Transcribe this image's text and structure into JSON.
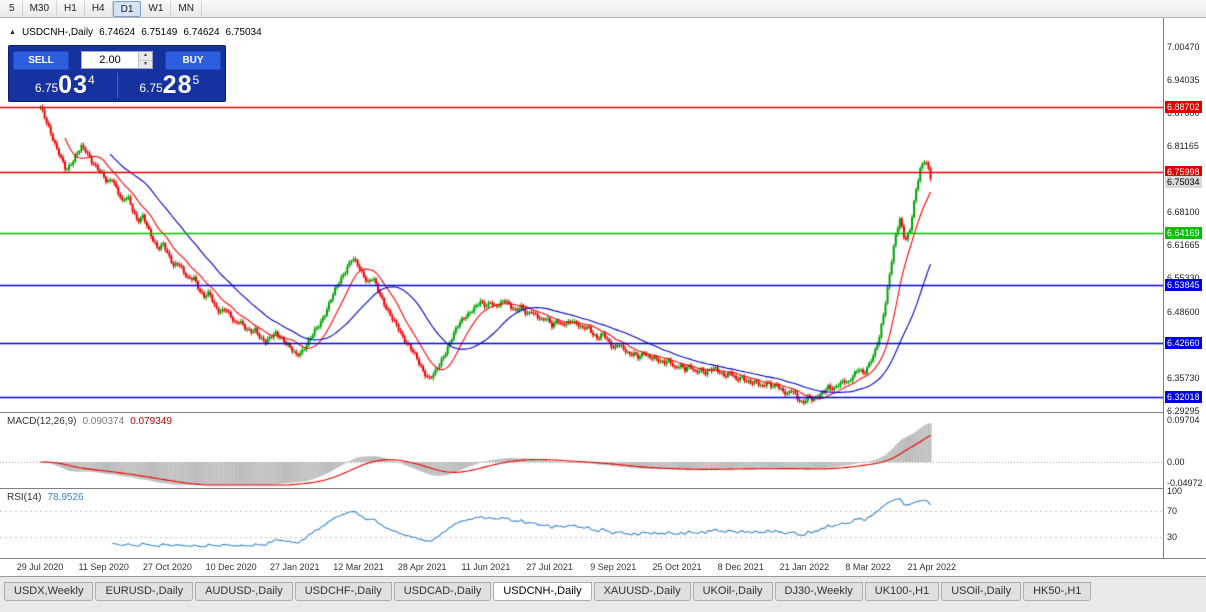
{
  "toolbar": {
    "timeframes": [
      {
        "label": "5",
        "active": false
      },
      {
        "label": "M30",
        "active": false
      },
      {
        "label": "H1",
        "active": false
      },
      {
        "label": "H4",
        "active": false
      },
      {
        "label": "D1",
        "active": true
      },
      {
        "label": "W1",
        "active": false
      },
      {
        "label": "MN",
        "active": false
      }
    ]
  },
  "quote_header": {
    "arrow": "▲",
    "symbol": "USDCNH-,Daily",
    "open": "6.74624",
    "high": "6.75149",
    "low": "6.74624",
    "close": "6.75034"
  },
  "trade_panel": {
    "sell_label": "SELL",
    "buy_label": "BUY",
    "volume": "2.00",
    "sell_price": {
      "prefix": "6.75",
      "main": "03",
      "pip": "4"
    },
    "buy_price": {
      "prefix": "6.75",
      "main": "28",
      "pip": "5"
    }
  },
  "icons": {
    "spinner_up": "▲",
    "spinner_down": "▼"
  },
  "price_axis": {
    "labels": [
      "7.00470",
      "6.94035",
      "6.87600",
      "6.81165",
      "6.68100",
      "6.61665",
      "6.55330",
      "6.48600",
      "6.35730",
      "6.29295"
    ]
  },
  "levels": [
    {
      "label": "6.88702",
      "color": "#e00000",
      "text_color": "#ffffff",
      "draw_line": true,
      "width": 1.6,
      "type": "resistance"
    },
    {
      "label": "6.75998",
      "color": "#e00000",
      "text_color": "#ffffff",
      "draw_line": true,
      "width": 1.6,
      "type": "resistance"
    },
    {
      "label": "6.75034",
      "color": "#d8d8d8",
      "text_color": "#000000",
      "draw_line": false,
      "width": 1,
      "type": "current"
    },
    {
      "label": "6.64169",
      "color": "#00c000",
      "text_color": "#ffffff",
      "draw_line": true,
      "width": 1.6,
      "type": "support"
    },
    {
      "label": "6.53845",
      "color": "#0000e0",
      "text_color": "#ffffff",
      "draw_line": true,
      "width": 1.6,
      "type": "support"
    },
    {
      "label": "6.42660",
      "color": "#0000e0",
      "text_color": "#ffffff",
      "draw_line": true,
      "width": 1.6,
      "type": "support"
    },
    {
      "label": "6.32018",
      "color": "#0000e0",
      "text_color": "#ffffff",
      "draw_line": true,
      "width": 1.6,
      "type": "support"
    }
  ],
  "indicators": {
    "macd": {
      "name": "MACD(12,26,9)",
      "value": "0.090374",
      "signal_value": "0.079349",
      "axis_labels": [
        "0.09704",
        "0.00",
        "-0.04972"
      ]
    },
    "rsi": {
      "name": "RSI(14)",
      "value": "78.9526",
      "axis_labels": [
        "100",
        "70",
        "30"
      ],
      "levels": [
        70,
        30
      ]
    }
  },
  "x_axis": {
    "dates": [
      "29 Jul 2020",
      "11 Sep 2020",
      "27 Oct 2020",
      "10 Dec 2020",
      "27 Jan 2021",
      "12 Mar 2021",
      "28 Apr 2021",
      "11 Jun 2021",
      "27 Jul 2021",
      "9 Sep 2021",
      "25 Oct 2021",
      "8 Dec 2021",
      "21 Jan 2022",
      "8 Mar 2022",
      "21 Apr 2022"
    ]
  },
  "tabs": [
    {
      "label": "USDX,Weekly",
      "active": false
    },
    {
      "label": "EURUSD-,Daily",
      "active": false
    },
    {
      "label": "AUDUSD-,Daily",
      "active": false
    },
    {
      "label": "USDCHF-,Daily",
      "active": false
    },
    {
      "label": "USDCAD-,Daily",
      "active": false
    },
    {
      "label": "USDCNH-,Daily",
      "active": true
    },
    {
      "label": "XAUUSD-,Daily",
      "active": false
    },
    {
      "label": "UKOil-,Daily",
      "active": false
    },
    {
      "label": "DJ30-,Weekly",
      "active": false
    },
    {
      "label": "UK100-,H1",
      "active": false
    },
    {
      "label": "USOil-,Daily",
      "active": false
    },
    {
      "label": "HK50-,H1",
      "active": false
    }
  ],
  "chart_data": {
    "type": "candlestick",
    "symbol": "USDCNH-",
    "timeframe": "Daily",
    "title": "USDCNH-,Daily",
    "price_axis_top": 7.06095,
    "price_axis_bottom": 6.291,
    "visible_start": "29 Jul 2020",
    "visible_end": "21 Apr 2022",
    "last_ohlc": {
      "open": 6.74624,
      "high": 6.75149,
      "low": 6.74624,
      "close": 6.75034
    },
    "levels": [
      6.88702,
      6.75998,
      6.64169,
      6.53845,
      6.4266,
      6.32018
    ],
    "macd_current": 0.090374,
    "macd_signal_current": 0.079349,
    "rsi_current": 78.9526,
    "closes": [
      6.885,
      6.862,
      6.838,
      6.81,
      6.785,
      6.762,
      6.778,
      6.795,
      6.808,
      6.798,
      6.782,
      6.77,
      6.755,
      6.738,
      6.748,
      6.726,
      6.7,
      6.712,
      6.688,
      6.665,
      6.672,
      6.648,
      6.628,
      6.612,
      6.618,
      6.595,
      6.578,
      6.585,
      6.562,
      6.548,
      6.555,
      6.532,
      6.515,
      6.522,
      6.5,
      6.488,
      6.492,
      6.478,
      6.465,
      6.472,
      6.455,
      6.445,
      6.452,
      6.438,
      6.428,
      6.435,
      6.445,
      6.438,
      6.425,
      6.412,
      6.402,
      6.41,
      6.422,
      6.438,
      6.455,
      6.472,
      6.492,
      6.515,
      6.538,
      6.558,
      6.575,
      6.59,
      6.578,
      6.562,
      6.545,
      6.552,
      6.528,
      6.508,
      6.488,
      6.468,
      6.452,
      6.435,
      6.422,
      6.405,
      6.385,
      6.368,
      6.358,
      6.365,
      6.382,
      6.405,
      6.428,
      6.448,
      6.465,
      6.478,
      6.488,
      6.495,
      6.505,
      6.498,
      6.508,
      6.495,
      6.502,
      6.51,
      6.498,
      6.488,
      6.495,
      6.482,
      6.49,
      6.478,
      6.468,
      6.475,
      6.462,
      6.47,
      6.458,
      6.465,
      6.472,
      6.462,
      6.452,
      6.458,
      6.445,
      6.435,
      6.442,
      6.428,
      6.418,
      6.425,
      6.412,
      6.402,
      6.408,
      6.398,
      6.405,
      6.395,
      6.4,
      6.392,
      6.385,
      6.39,
      6.378,
      6.385,
      6.372,
      6.38,
      6.37,
      6.376,
      6.365,
      6.372,
      6.378,
      6.368,
      6.36,
      6.366,
      6.355,
      6.362,
      6.35,
      6.345,
      6.352,
      6.342,
      6.348,
      6.338,
      6.345,
      6.335,
      6.325,
      6.332,
      6.318,
      6.31,
      6.32,
      6.312,
      6.322,
      6.332,
      6.34,
      6.332,
      6.345,
      6.355,
      6.348,
      6.362,
      6.375,
      6.368,
      6.385,
      6.402,
      6.438,
      6.495,
      6.56,
      6.625,
      6.668,
      6.628,
      6.648,
      6.712,
      6.765,
      6.788,
      6.75
    ],
    "colors": {
      "up": "#00a000",
      "down": "#ee0000",
      "ma_fast": "#ff0000",
      "ma_slow": "#0000cc",
      "macd_hist": "#bcbcbc",
      "macd_signal": "#ee0000",
      "rsi_line": "#3a87c8"
    }
  }
}
